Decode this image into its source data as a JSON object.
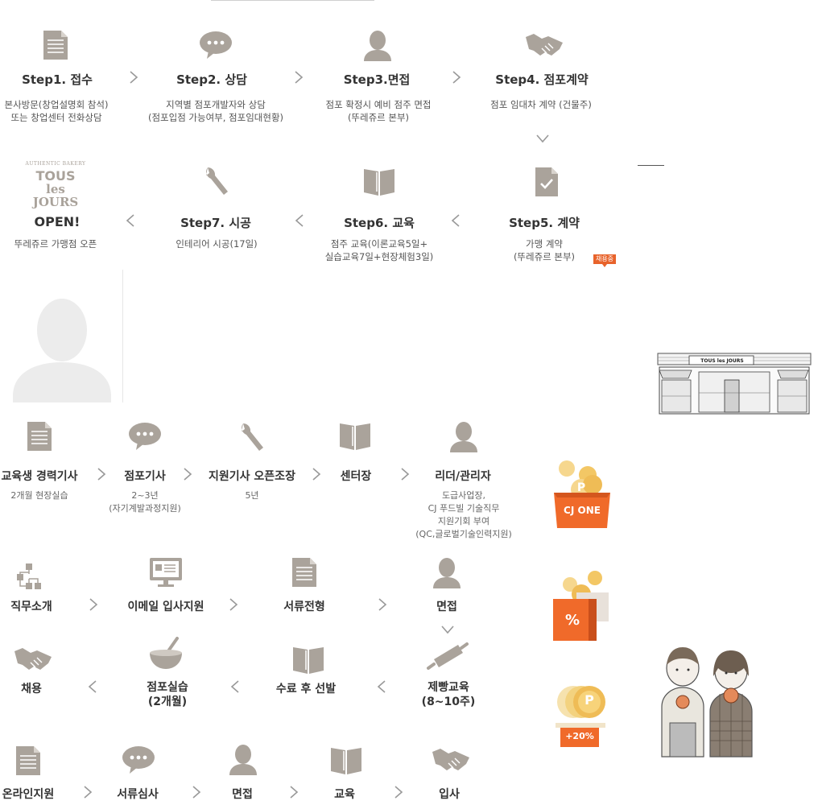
{
  "process": {
    "steps": [
      {
        "title": "Step1. 접수",
        "desc1": "본사방문(창업설명회 참석)",
        "desc2": "또는 창업센터 전화상담",
        "icon": "document-icon"
      },
      {
        "title": "Step2. 상담",
        "desc1": "지역별 점포개발자와 상담",
        "desc2": "(점포입점 가능여부, 점포임대현황)",
        "icon": "speech-bubble-icon"
      },
      {
        "title": "Step3.면접",
        "desc1": "점포 확정시 예비 점주 면접",
        "desc2": "(뚜레쥬르 본부)",
        "icon": "person-icon"
      },
      {
        "title": "Step4. 점포계약",
        "desc1": "점포 임대차 계약 (건물주)",
        "desc2": "",
        "icon": "handshake-icon"
      },
      {
        "title": "Step5. 계약",
        "desc1": "가맹 계약",
        "desc2": "(뚜레쥬르 본부)",
        "icon": "signed-document-icon"
      },
      {
        "title": "Step6. 교육",
        "desc1": "점주 교육(이론교육5일+",
        "desc2": "실습교육7일+현장체험3일)",
        "icon": "book-icon"
      },
      {
        "title": "Step7. 시공",
        "desc1": "인테리어 시공(17일)",
        "desc2": "",
        "icon": "wrench-icon"
      },
      {
        "title": "OPEN!",
        "desc1": "뚜레쥬르 가맹점 오픈",
        "desc2": "",
        "icon": "tous-les-jours-logo"
      }
    ],
    "badge": "채용중",
    "logo": {
      "top": "AUTHENTIC BAKERY",
      "line1": "TOUS",
      "line2": "les JOURS"
    }
  },
  "career": {
    "items": [
      {
        "title": "교육생 경력기사",
        "lines": [
          "2개월 현장실습"
        ]
      },
      {
        "title": "점포기사",
        "lines": [
          "2~3년",
          "(자기계발과정지원)"
        ]
      },
      {
        "title": "지원기사 오픈조장",
        "lines": [
          "5년"
        ]
      },
      {
        "title": "센터장",
        "lines": []
      },
      {
        "title": "리더/관리자",
        "lines": [
          "도급사업장,",
          "CJ 푸드빌 기술직무",
          "지원기회 부여",
          "(QC,글로벌기술인력지원)"
        ]
      }
    ]
  },
  "hiring": {
    "row1": [
      "직무소개",
      "이메일 입사지원",
      "서류전형",
      "면접"
    ],
    "row2": [
      "채용",
      "점포실습",
      "(2개월)",
      "수료 후 선발",
      "제빵교육",
      "(8~10주)"
    ]
  },
  "online": {
    "items": [
      "온라인지원",
      "서류심사",
      "면접",
      "교육",
      "입사"
    ]
  },
  "benefits": {
    "cjone": "CJ ONE",
    "percent": "%",
    "plus": "+20%",
    "coin": "P",
    "shop_sign": "TOUS les JOURS"
  },
  "colors": {
    "accent": "#f06a2a",
    "icon": "#a9a29a",
    "text": "#333333"
  }
}
